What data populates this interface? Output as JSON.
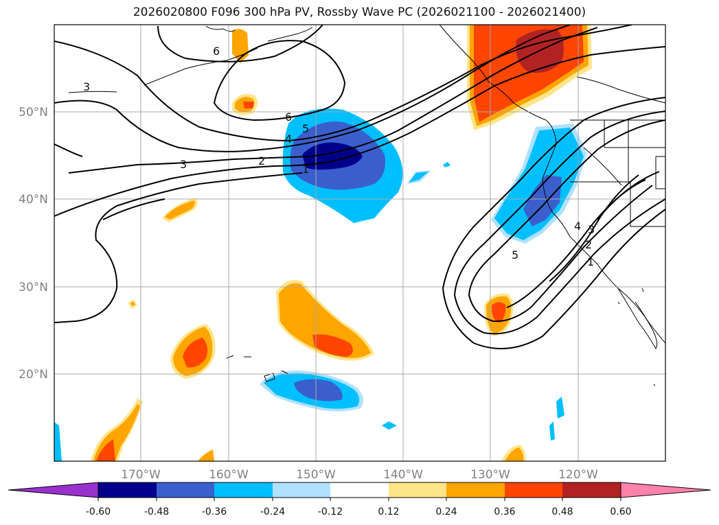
{
  "title": "2026020800 F096 300 hPa PV, Rossby Wave PC (2026021100 - 2026021400)",
  "map": {
    "lat_labels": [
      "50°N",
      "40°N",
      "30°N",
      "20°N"
    ],
    "lon_labels": [
      "170°W",
      "160°W",
      "150°W",
      "140°W",
      "130°W",
      "120°W"
    ],
    "lat_range": [
      10,
      60
    ],
    "lon_range": [
      -180,
      -110
    ],
    "gridlines": true,
    "label_color": "#808080"
  },
  "contours": {
    "labels": [
      "6",
      "3",
      "6",
      "5",
      "4",
      "3",
      "2",
      "1",
      "4",
      "3",
      "5",
      "2",
      "1"
    ]
  },
  "colorbar": {
    "ticks": [
      "-0.60",
      "-0.48",
      "-0.36",
      "-0.24",
      "-0.12",
      "0.12",
      "0.24",
      "0.36",
      "0.48",
      "0.60"
    ],
    "colors": [
      "#9932cc",
      "#00008b",
      "#3a5fcd",
      "#00bfff",
      "#b0e2ff",
      "#ffffff",
      "#ffe58a",
      "#ffa500",
      "#ff4500",
      "#b22222",
      "#ff82ab"
    ],
    "extend": "both"
  }
}
